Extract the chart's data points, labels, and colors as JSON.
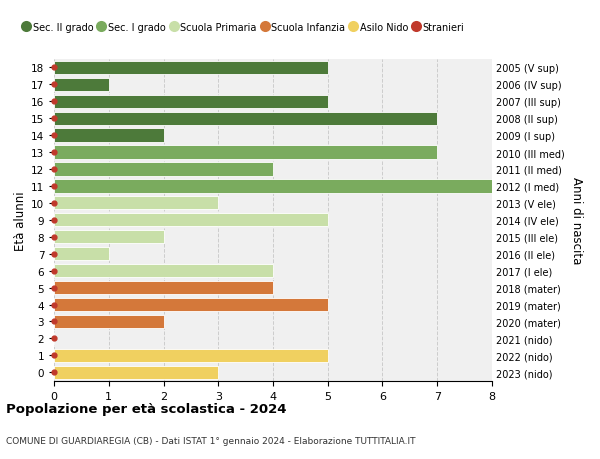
{
  "ages": [
    18,
    17,
    16,
    15,
    14,
    13,
    12,
    11,
    10,
    9,
    8,
    7,
    6,
    5,
    4,
    3,
    2,
    1,
    0
  ],
  "right_labels": [
    "2005 (V sup)",
    "2006 (IV sup)",
    "2007 (III sup)",
    "2008 (II sup)",
    "2009 (I sup)",
    "2010 (III med)",
    "2011 (II med)",
    "2012 (I med)",
    "2013 (V ele)",
    "2014 (IV ele)",
    "2015 (III ele)",
    "2016 (II ele)",
    "2017 (I ele)",
    "2018 (mater)",
    "2019 (mater)",
    "2020 (mater)",
    "2021 (nido)",
    "2022 (nido)",
    "2023 (nido)"
  ],
  "values": [
    5,
    1,
    5,
    7,
    2,
    7,
    4,
    8,
    3,
    5,
    2,
    1,
    4,
    4,
    5,
    2,
    0,
    5,
    3
  ],
  "bar_colors": [
    "#4d7a3a",
    "#4d7a3a",
    "#4d7a3a",
    "#4d7a3a",
    "#4d7a3a",
    "#7aab5e",
    "#7aab5e",
    "#7aab5e",
    "#c8dfa8",
    "#c8dfa8",
    "#c8dfa8",
    "#c8dfa8",
    "#c8dfa8",
    "#d4783a",
    "#d4783a",
    "#d4783a",
    "#f0d060",
    "#f0d060",
    "#f0d060"
  ],
  "stranieri_dot_color": "#c0392b",
  "legend_labels": [
    "Sec. II grado",
    "Sec. I grado",
    "Scuola Primaria",
    "Scuola Infanzia",
    "Asilo Nido",
    "Stranieri"
  ],
  "legend_colors": [
    "#4d7a3a",
    "#7aab5e",
    "#c8dfa8",
    "#d4783a",
    "#f0d060",
    "#c0392b"
  ],
  "title": "Popolazione per età scolastica - 2024",
  "subtitle": "COMUNE DI GUARDIAREGIA (CB) - Dati ISTAT 1° gennaio 2024 - Elaborazione TUTTITALIA.IT",
  "ylabel_left": "Età alunni",
  "ylabel_right": "Anni di nascita",
  "xlim": [
    0,
    8
  ],
  "xticks": [
    0,
    1,
    2,
    3,
    4,
    5,
    6,
    7,
    8
  ],
  "background_color": "#ffffff",
  "bar_height": 0.78,
  "grid_color": "#cccccc",
  "ax_background": "#f0f0f0"
}
